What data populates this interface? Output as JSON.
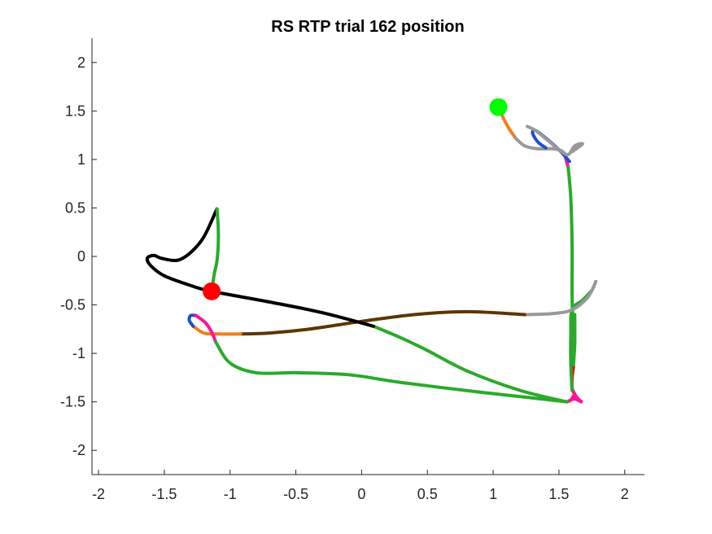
{
  "chart_data": {
    "type": "line",
    "title": "RS  RTP trial 162 position",
    "xlabel": "",
    "ylabel": "",
    "xlim": [
      -2.05,
      2.15
    ],
    "ylim": [
      -2.25,
      2.25
    ],
    "xticks": [
      -2,
      -1.5,
      -1,
      -0.5,
      0,
      0.5,
      1,
      1.5,
      2
    ],
    "xtick_labels": [
      "-2",
      "-1.5",
      "-1",
      "-0.5",
      "0",
      "0.5",
      "1",
      "1.5",
      "2"
    ],
    "yticks": [
      -2,
      -1.5,
      -1,
      -0.5,
      0,
      0.5,
      1,
      1.5,
      2
    ],
    "ytick_labels": [
      "-2",
      "-1.5",
      "-1",
      "-0.5",
      "0",
      "0.5",
      "1",
      "1.5",
      "2"
    ],
    "grid": false,
    "legend": "none",
    "colors": {
      "start": "#00ff00",
      "end": "#ff0000",
      "orange": "#f07d1e",
      "blue": "#1f4ed0",
      "gray": "#999999",
      "magenta": "#ff1493",
      "green": "#2aaa2a",
      "red": "#ee0000",
      "brown": "#5c3600",
      "black": "#000000"
    },
    "markers": [
      {
        "kind": "start",
        "x": 1.04,
        "y": 1.54
      },
      {
        "kind": "end",
        "x": -1.14,
        "y": -0.36
      }
    ],
    "series": [
      {
        "color": "orange",
        "points": [
          [
            1.04,
            1.54
          ],
          [
            1.08,
            1.42
          ],
          [
            1.12,
            1.32
          ],
          [
            1.17,
            1.22
          ]
        ]
      },
      {
        "color": "gray",
        "points": [
          [
            1.17,
            1.22
          ],
          [
            1.24,
            1.14
          ],
          [
            1.34,
            1.11
          ],
          [
            1.46,
            1.11
          ],
          [
            1.53,
            1.08
          ],
          [
            1.55,
            1.02
          ]
        ]
      },
      {
        "color": "magenta",
        "points": [
          [
            1.55,
            1.02
          ],
          [
            1.56,
            0.97
          ],
          [
            1.57,
            0.92
          ]
        ]
      },
      {
        "color": "green",
        "points": [
          [
            1.57,
            0.92
          ],
          [
            1.59,
            0.6
          ],
          [
            1.6,
            0.1
          ],
          [
            1.6,
            -0.4
          ],
          [
            1.61,
            -0.9
          ],
          [
            1.61,
            -1.14
          ]
        ]
      },
      {
        "color": "red",
        "points": [
          [
            1.61,
            -1.14
          ],
          [
            1.6,
            -1.25
          ],
          [
            1.6,
            -1.36
          ],
          [
            1.62,
            -1.42
          ]
        ]
      },
      {
        "color": "magenta",
        "points": [
          [
            1.62,
            -1.42
          ],
          [
            1.59,
            -1.48
          ],
          [
            1.56,
            -1.5
          ],
          [
            1.62,
            -1.47
          ],
          [
            1.67,
            -1.5
          ],
          [
            1.64,
            -1.46
          ],
          [
            1.6,
            -1.38
          ]
        ]
      },
      {
        "color": "green",
        "points": [
          [
            1.6,
            -1.38
          ],
          [
            1.59,
            -1.1
          ],
          [
            1.59,
            -0.8
          ],
          [
            1.6,
            -0.55
          ],
          [
            1.68,
            -0.45
          ],
          [
            1.75,
            -0.35
          ],
          [
            1.78,
            -0.26
          ]
        ]
      },
      {
        "color": "gray",
        "points": [
          [
            1.78,
            -0.26
          ],
          [
            1.72,
            -0.42
          ],
          [
            1.6,
            -0.55
          ],
          [
            1.45,
            -0.59
          ],
          [
            1.24,
            -0.6
          ]
        ]
      },
      {
        "color": "brown",
        "points": [
          [
            1.24,
            -0.6
          ],
          [
            0.8,
            -0.57
          ],
          [
            0.4,
            -0.6
          ],
          [
            0.0,
            -0.67
          ],
          [
            -0.4,
            -0.75
          ],
          [
            -0.7,
            -0.79
          ],
          [
            -0.92,
            -0.8
          ]
        ]
      },
      {
        "color": "orange",
        "points": [
          [
            -0.92,
            -0.8
          ],
          [
            -1.1,
            -0.8
          ],
          [
            -1.2,
            -0.79
          ],
          [
            -1.28,
            -0.72
          ]
        ]
      },
      {
        "color": "blue",
        "points": [
          [
            -1.28,
            -0.72
          ],
          [
            -1.31,
            -0.66
          ],
          [
            -1.3,
            -0.61
          ],
          [
            -1.26,
            -0.61
          ]
        ]
      },
      {
        "color": "magenta",
        "points": [
          [
            -1.26,
            -0.61
          ],
          [
            -1.19,
            -0.68
          ],
          [
            -1.14,
            -0.78
          ],
          [
            -1.11,
            -0.88
          ]
        ]
      },
      {
        "color": "green",
        "points": [
          [
            -1.11,
            -0.88
          ],
          [
            -1.0,
            -1.1
          ],
          [
            -0.8,
            -1.2
          ],
          [
            -0.5,
            -1.2
          ],
          [
            -0.1,
            -1.22
          ],
          [
            0.3,
            -1.3
          ],
          [
            0.9,
            -1.4
          ],
          [
            1.3,
            -1.46
          ],
          [
            1.56,
            -1.5
          ]
        ]
      },
      {
        "color": "green",
        "points": [
          [
            1.56,
            -1.5
          ],
          [
            1.2,
            -1.38
          ],
          [
            0.8,
            -1.18
          ],
          [
            0.5,
            -0.97
          ],
          [
            0.3,
            -0.84
          ],
          [
            0.09,
            -0.72
          ]
        ]
      },
      {
        "color": "black",
        "points": [
          [
            0.09,
            -0.72
          ],
          [
            -0.3,
            -0.58
          ],
          [
            -0.7,
            -0.47
          ],
          [
            -1.14,
            -0.36
          ],
          [
            -1.3,
            -0.3
          ],
          [
            -1.5,
            -0.2
          ],
          [
            -1.6,
            -0.1
          ],
          [
            -1.63,
            -0.02
          ],
          [
            -1.58,
            0.01
          ],
          [
            -1.52,
            -0.02
          ],
          [
            -1.4,
            -0.04
          ],
          [
            -1.3,
            0.04
          ],
          [
            -1.2,
            0.2
          ],
          [
            -1.1,
            0.49
          ]
        ]
      },
      {
        "color": "green",
        "points": [
          [
            -1.1,
            0.49
          ],
          [
            -1.09,
            0.3
          ],
          [
            -1.09,
            0.12
          ],
          [
            -1.1,
            -0.05
          ],
          [
            -1.12,
            -0.18
          ],
          [
            -1.14,
            -0.36
          ]
        ]
      },
      {
        "color": "green",
        "points": [
          [
            1.61,
            -1.12
          ],
          [
            1.62,
            -0.9
          ],
          [
            1.62,
            -0.6
          ]
        ]
      },
      {
        "color": "blue",
        "points": [
          [
            1.4,
            1.12
          ],
          [
            1.34,
            1.18
          ],
          [
            1.3,
            1.27
          ],
          [
            1.32,
            1.3
          ],
          [
            1.4,
            1.22
          ],
          [
            1.5,
            1.1
          ],
          [
            1.58,
            0.98
          ]
        ]
      },
      {
        "color": "gray",
        "points": [
          [
            1.26,
            1.34
          ],
          [
            1.32,
            1.3
          ],
          [
            1.43,
            1.18
          ],
          [
            1.5,
            1.1
          ],
          [
            1.57,
            1.05
          ],
          [
            1.62,
            1.14
          ],
          [
            1.68,
            1.16
          ],
          [
            1.6,
            1.08
          ]
        ]
      }
    ]
  }
}
